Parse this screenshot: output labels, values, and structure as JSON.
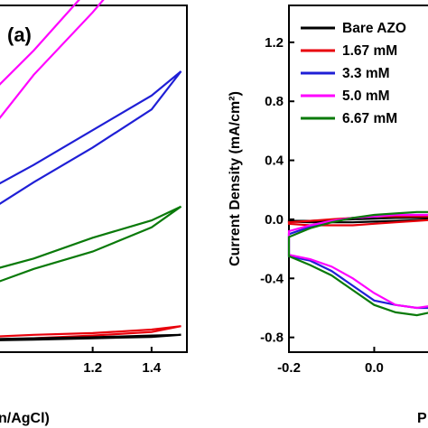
{
  "chart_data": [
    {
      "type": "line",
      "panel_label": "(a)",
      "xlabel_visible": "n/AgCl)",
      "ylabel": "",
      "xlim": [
        0.87,
        1.52
      ],
      "ylim": [
        0,
        1
      ],
      "x_ticks": [
        1.2,
        1.4
      ],
      "x_tick_labels": [
        "1.2",
        "1.4"
      ],
      "colors": {
        "black": "#000000",
        "red": "#e8000b",
        "blue": "#1f1fd6",
        "magenta": "#ff00ff",
        "green": "#0a7a0a"
      },
      "series": [
        {
          "color_key": "magenta",
          "upper": [
            [
              0.87,
              0.76
            ],
            [
              1.0,
              0.87
            ],
            [
              1.2,
              1.06
            ],
            [
              1.4,
              1.23
            ],
            [
              1.5,
              1.32
            ]
          ],
          "lower": [
            [
              1.5,
              1.32
            ],
            [
              1.4,
              1.18
            ],
            [
              1.2,
              0.98
            ],
            [
              1.0,
              0.8
            ],
            [
              0.87,
              0.66
            ]
          ]
        },
        {
          "color_key": "blue",
          "upper": [
            [
              0.87,
              0.48
            ],
            [
              1.0,
              0.54
            ],
            [
              1.2,
              0.64
            ],
            [
              1.4,
              0.74
            ],
            [
              1.5,
              0.81
            ]
          ],
          "lower": [
            [
              1.5,
              0.81
            ],
            [
              1.4,
              0.7
            ],
            [
              1.2,
              0.59
            ],
            [
              1.0,
              0.49
            ],
            [
              0.87,
              0.42
            ]
          ]
        },
        {
          "color_key": "green",
          "upper": [
            [
              0.87,
              0.24
            ],
            [
              1.0,
              0.27
            ],
            [
              1.2,
              0.33
            ],
            [
              1.4,
              0.38
            ],
            [
              1.5,
              0.42
            ]
          ],
          "lower": [
            [
              1.5,
              0.42
            ],
            [
              1.4,
              0.36
            ],
            [
              1.2,
              0.29
            ],
            [
              1.0,
              0.24
            ],
            [
              0.87,
              0.2
            ]
          ]
        },
        {
          "color_key": "red",
          "upper": [
            [
              0.87,
              0.045
            ],
            [
              1.0,
              0.05
            ],
            [
              1.2,
              0.055
            ],
            [
              1.4,
              0.065
            ],
            [
              1.5,
              0.075
            ]
          ],
          "lower": [
            [
              1.5,
              0.075
            ],
            [
              1.4,
              0.058
            ],
            [
              1.2,
              0.048
            ],
            [
              1.0,
              0.04
            ],
            [
              0.87,
              0.035
            ]
          ]
        },
        {
          "color_key": "black",
          "upper": [
            [
              0.87,
              0.038
            ],
            [
              1.0,
              0.04
            ],
            [
              1.2,
              0.043
            ],
            [
              1.4,
              0.048
            ],
            [
              1.5,
              0.05
            ]
          ],
          "lower": [
            [
              1.5,
              0.05
            ],
            [
              1.4,
              0.044
            ],
            [
              1.2,
              0.04
            ],
            [
              1.0,
              0.036
            ],
            [
              0.87,
              0.034
            ]
          ]
        }
      ]
    },
    {
      "type": "line",
      "ylabel": "Current Density (mA/cm²)",
      "xlabel_visible": "P",
      "xlim": [
        -0.2,
        0.16
      ],
      "ylim": [
        -0.9,
        1.45
      ],
      "x_ticks": [
        -0.2,
        0.0
      ],
      "x_tick_labels": [
        "-0.2",
        "0.0"
      ],
      "y_ticks": [
        -0.8,
        -0.4,
        0.0,
        0.4,
        0.8,
        1.2
      ],
      "y_tick_labels": [
        "-0.8",
        "-0.4",
        "0.0",
        "0.4",
        "0.8",
        "1.2"
      ],
      "legend": {
        "placement": "top-right",
        "entries": [
          {
            "label": "Bare AZO",
            "color": "#000000"
          },
          {
            "label": "1.67 mM",
            "color": "#e8000b"
          },
          {
            "label": "3.3 mM",
            "color": "#1f1fd6"
          },
          {
            "label": "5.0 mM",
            "color": "#ff00ff"
          },
          {
            "label": "6.67 mM",
            "color": "#0a7a0a"
          }
        ]
      },
      "series": [
        {
          "name": "Bare AZO",
          "color": "#000000",
          "x": [
            -0.2,
            -0.15,
            -0.1,
            -0.05,
            0.0,
            0.05,
            0.1,
            0.15,
            0.15,
            0.1,
            0.05,
            0.0,
            -0.05,
            -0.1,
            -0.15,
            -0.2
          ],
          "y": [
            -0.01,
            -0.01,
            -0.005,
            0.0,
            0.005,
            0.01,
            0.01,
            0.01,
            0.0,
            -0.005,
            -0.01,
            -0.015,
            -0.02,
            -0.02,
            -0.02,
            -0.015
          ]
        },
        {
          "name": "1.67 mM",
          "color": "#e8000b",
          "x": [
            -0.2,
            -0.15,
            -0.1,
            -0.05,
            0.0,
            0.05,
            0.1,
            0.15,
            0.15,
            0.1,
            0.05,
            0.0,
            -0.05,
            -0.1,
            -0.15,
            -0.2
          ],
          "y": [
            -0.02,
            -0.01,
            0.0,
            0.01,
            0.02,
            0.02,
            0.02,
            0.02,
            0.0,
            -0.01,
            -0.02,
            -0.03,
            -0.04,
            -0.04,
            -0.04,
            -0.03
          ]
        },
        {
          "name": "3.3 mM",
          "color": "#1f1fd6",
          "x": [
            -0.2,
            -0.15,
            -0.1,
            -0.05,
            0.0,
            0.05,
            0.1,
            0.15,
            0.15,
            0.1,
            0.05,
            0.0,
            -0.05,
            -0.1,
            -0.15,
            -0.2
          ],
          "y": [
            -0.1,
            -0.05,
            -0.01,
            0.01,
            0.02,
            0.03,
            0.03,
            0.03,
            -0.6,
            -0.6,
            -0.58,
            -0.55,
            -0.45,
            -0.35,
            -0.28,
            -0.25
          ]
        },
        {
          "name": "5.0 mM",
          "color": "#ff00ff",
          "x": [
            -0.2,
            -0.15,
            -0.1,
            -0.05,
            0.0,
            0.05,
            0.1,
            0.15,
            0.15,
            0.1,
            0.05,
            0.0,
            -0.05,
            -0.1,
            -0.15,
            -0.2
          ],
          "y": [
            -0.08,
            -0.04,
            -0.01,
            0.01,
            0.02,
            0.03,
            0.03,
            0.03,
            -0.58,
            -0.6,
            -0.58,
            -0.5,
            -0.4,
            -0.32,
            -0.27,
            -0.24
          ]
        },
        {
          "name": "6.67 mM",
          "color": "#0a7a0a",
          "x": [
            -0.2,
            -0.15,
            -0.1,
            -0.05,
            0.0,
            0.05,
            0.1,
            0.15,
            0.15,
            0.1,
            0.05,
            0.0,
            -0.05,
            -0.1,
            -0.15,
            -0.2
          ],
          "y": [
            -0.12,
            -0.06,
            -0.02,
            0.01,
            0.03,
            0.04,
            0.05,
            0.05,
            -0.62,
            -0.65,
            -0.63,
            -0.58,
            -0.48,
            -0.38,
            -0.31,
            -0.25
          ]
        }
      ]
    }
  ]
}
